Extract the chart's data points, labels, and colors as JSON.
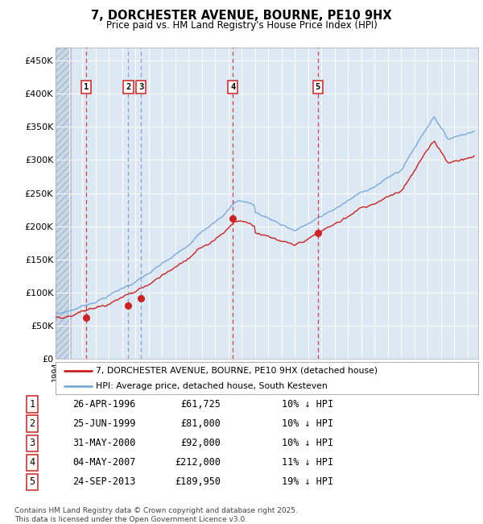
{
  "title": "7, DORCHESTER AVENUE, BOURNE, PE10 9HX",
  "subtitle": "Price paid vs. HM Land Registry's House Price Index (HPI)",
  "ylabel_ticks": [
    "£0",
    "£50K",
    "£100K",
    "£150K",
    "£200K",
    "£250K",
    "£300K",
    "£350K",
    "£400K",
    "£450K"
  ],
  "ylabel_values": [
    0,
    50000,
    100000,
    150000,
    200000,
    250000,
    300000,
    350000,
    400000,
    450000
  ],
  "ylim": [
    0,
    470000
  ],
  "xlim_start": 1994.0,
  "xlim_end": 2025.8,
  "hpi_color": "#7aaadd",
  "price_color": "#cc2222",
  "purchases": [
    {
      "num": 1,
      "year": 1996.32,
      "price": 61725
    },
    {
      "num": 2,
      "year": 1999.48,
      "price": 81000
    },
    {
      "num": 3,
      "year": 2000.42,
      "price": 92000
    },
    {
      "num": 4,
      "year": 2007.34,
      "price": 212000
    },
    {
      "num": 5,
      "year": 2013.73,
      "price": 189950
    }
  ],
  "table_data": [
    [
      "1",
      "26-APR-1996",
      "£61,725",
      "10% ↓ HPI"
    ],
    [
      "2",
      "25-JUN-1999",
      "£81,000",
      "10% ↓ HPI"
    ],
    [
      "3",
      "31-MAY-2000",
      "£92,000",
      "10% ↓ HPI"
    ],
    [
      "4",
      "04-MAY-2007",
      "£212,000",
      "11% ↓ HPI"
    ],
    [
      "5",
      "24-SEP-2013",
      "£189,950",
      "19% ↓ HPI"
    ]
  ],
  "legend_entries": [
    "7, DORCHESTER AVENUE, BOURNE, PE10 9HX (detached house)",
    "HPI: Average price, detached house, South Kesteven"
  ],
  "footer": "Contains HM Land Registry data © Crown copyright and database right 2025.\nThis data is licensed under the Open Government Licence v3.0.",
  "background_plot": "#dde8f5",
  "purchase_vline_colors": [
    "#cc2222",
    "#8888cc",
    "#8888cc",
    "#cc2222",
    "#cc2222"
  ]
}
